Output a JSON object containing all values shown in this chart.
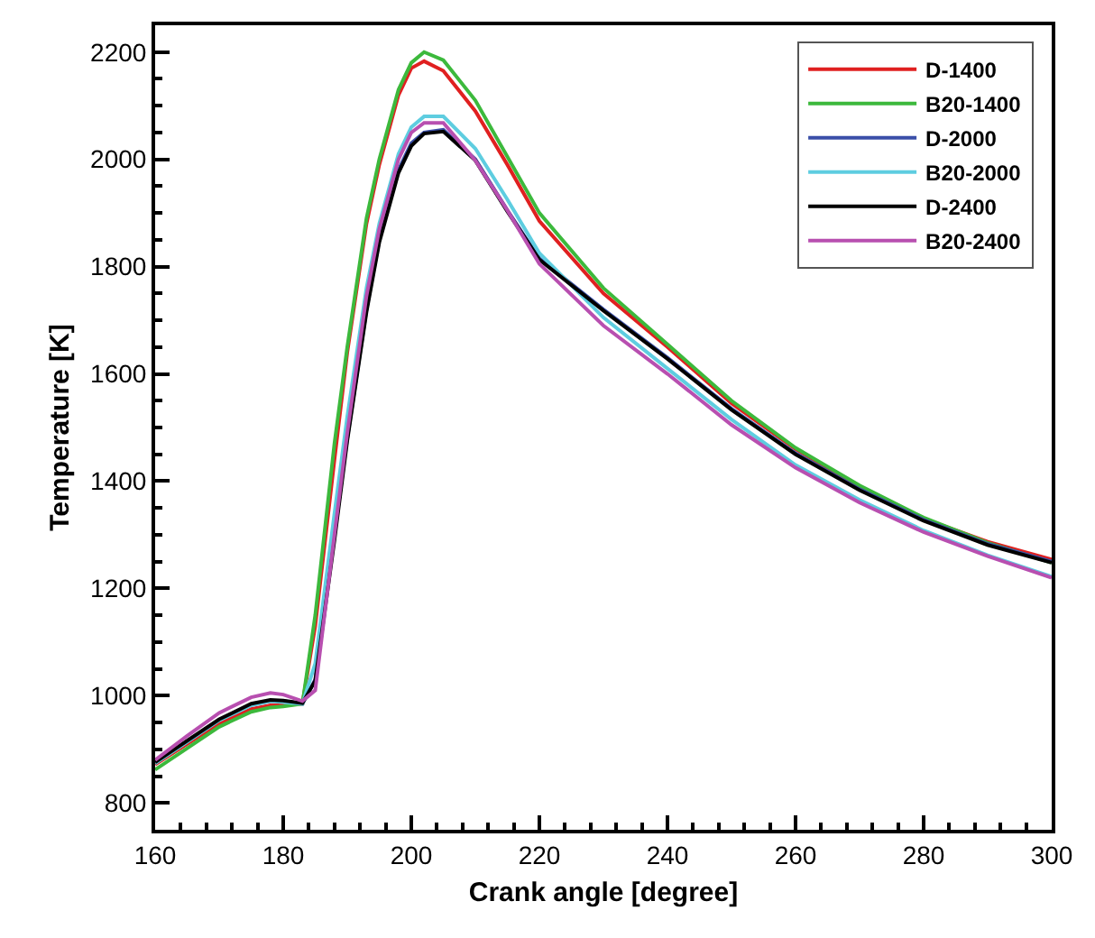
{
  "chart_data": {
    "type": "line",
    "xlabel": "Crank angle [degree]",
    "ylabel": "Temperature [K]",
    "xlim": [
      160,
      300
    ],
    "xticks": [
      160,
      180,
      200,
      220,
      240,
      260,
      280,
      300
    ],
    "ylim": [
      750,
      2250
    ],
    "yticks": [
      800,
      1000,
      1200,
      1400,
      1600,
      1800,
      2000,
      2200
    ],
    "grid": false,
    "legend": "top right",
    "marker": "none",
    "line_style": "solid",
    "x": [
      160,
      165,
      170,
      175,
      178,
      180,
      183,
      185,
      188,
      190,
      193,
      195,
      198,
      200,
      202,
      205,
      210,
      215,
      220,
      230,
      240,
      250,
      260,
      270,
      280,
      290,
      300
    ],
    "series": [
      {
        "name": "D-1400",
        "color": "#e02020",
        "values": [
          872,
          910,
          948,
          975,
          982,
          982,
          985,
          1130,
          1440,
          1640,
          1880,
          1990,
          2120,
          2170,
          2183,
          2165,
          2090,
          1990,
          1885,
          1750,
          1650,
          1545,
          1460,
          1390,
          1330,
          1287,
          1254
        ]
      },
      {
        "name": "B20-1400",
        "color": "#3cb93c",
        "values": [
          862,
          902,
          942,
          970,
          978,
          980,
          985,
          1150,
          1470,
          1650,
          1890,
          2000,
          2130,
          2180,
          2200,
          2185,
          2110,
          2005,
          1900,
          1760,
          1655,
          1550,
          1462,
          1392,
          1332,
          1285,
          1248
        ]
      },
      {
        "name": "D-2000",
        "color": "#3a4fa8",
        "values": [
          875,
          915,
          955,
          983,
          990,
          990,
          985,
          1030,
          1300,
          1480,
          1720,
          1850,
          1980,
          2030,
          2050,
          2055,
          2000,
          1905,
          1815,
          1720,
          1630,
          1535,
          1452,
          1385,
          1328,
          1283,
          1250
        ]
      },
      {
        "name": "B20-2000",
        "color": "#5ecde0",
        "values": [
          874,
          914,
          954,
          982,
          990,
          988,
          985,
          1060,
          1340,
          1520,
          1760,
          1880,
          2010,
          2060,
          2080,
          2080,
          2020,
          1925,
          1825,
          1705,
          1610,
          1515,
          1430,
          1365,
          1308,
          1262,
          1222
        ]
      },
      {
        "name": "D-2400",
        "color": "#000000",
        "values": [
          876,
          916,
          956,
          985,
          992,
          991,
          986,
          1028,
          1290,
          1475,
          1715,
          1845,
          1975,
          2025,
          2048,
          2052,
          1998,
          1903,
          1813,
          1718,
          1628,
          1533,
          1450,
          1383,
          1326,
          1281,
          1248
        ]
      },
      {
        "name": "B20-2400",
        "color": "#b84fb0",
        "values": [
          880,
          925,
          968,
          997,
          1005,
          1002,
          990,
          1010,
          1300,
          1490,
          1745,
          1870,
          2000,
          2050,
          2068,
          2068,
          1998,
          1905,
          1805,
          1690,
          1600,
          1505,
          1425,
          1360,
          1305,
          1260,
          1220
        ]
      }
    ]
  }
}
